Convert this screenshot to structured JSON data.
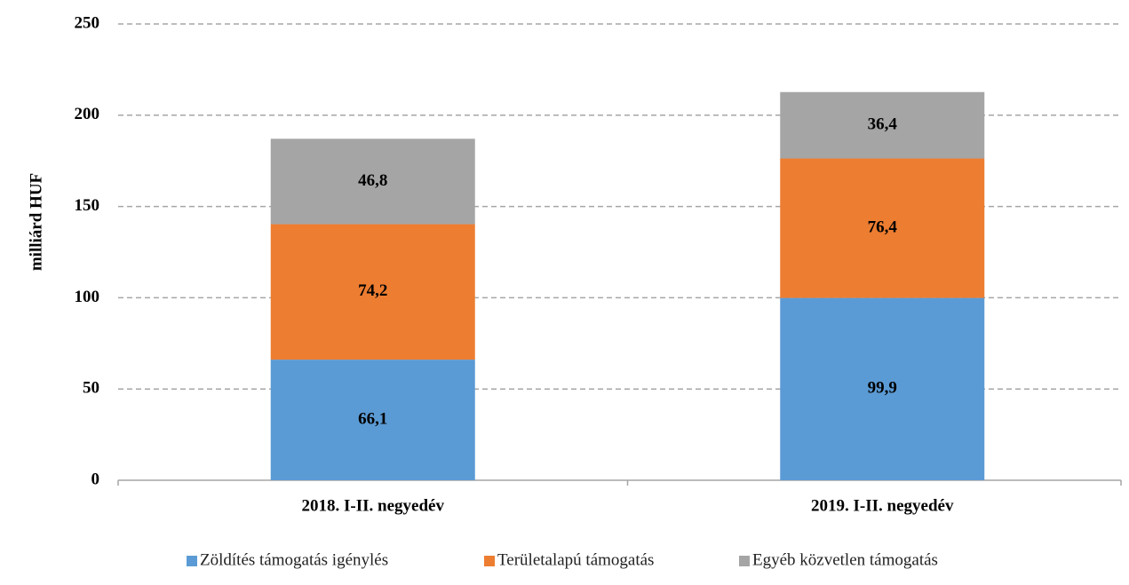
{
  "chart_data": {
    "type": "stacked_bar",
    "y_label": "milliárd HUF",
    "categories": [
      "2018. I-II. negyedév",
      "2019. I-II. negyedév"
    ],
    "series": [
      {
        "name": "Zöldítés támogatás igénylés",
        "color": "#5b9bd5",
        "values": [
          66.1,
          99.9
        ],
        "value_labels": [
          "66,1",
          "99,9"
        ]
      },
      {
        "name": "Területalapú támogatás",
        "color": "#ed7d31",
        "values": [
          74.2,
          76.4
        ],
        "value_labels": [
          "74,2",
          "76,4"
        ]
      },
      {
        "name": "Egyéb közvetlen támogatás",
        "color": "#a5a5a5",
        "values": [
          46.8,
          36.4
        ],
        "value_labels": [
          "46,8",
          "36,4"
        ]
      }
    ],
    "ylim": [
      0,
      250
    ],
    "yticks": [
      0,
      50,
      100,
      150,
      200,
      250
    ],
    "grid": true,
    "legend": "bottom"
  }
}
